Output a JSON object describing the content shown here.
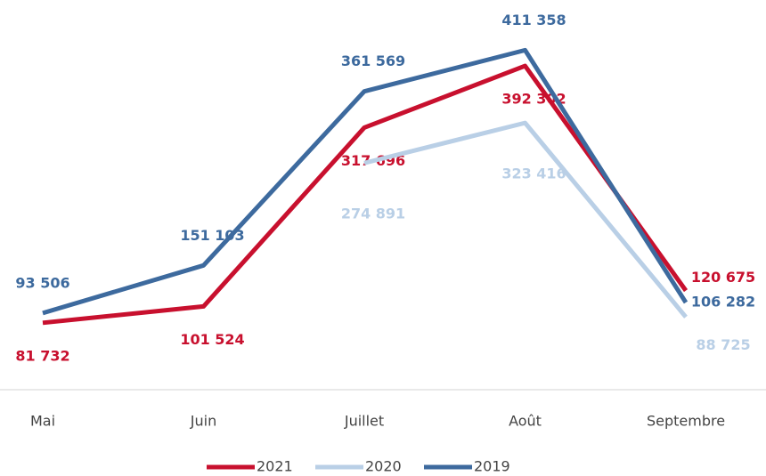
{
  "chart_data": {
    "type": "line",
    "categories": [
      "Mai",
      "Juin",
      "Juillet",
      "Août",
      "Septembre"
    ],
    "series": [
      {
        "name": "2021",
        "color": "#c8102e",
        "values": [
          81732,
          101524,
          317696,
          392302,
          120675
        ],
        "value_labels": [
          "81 732",
          "101 524",
          "317 696",
          "392 302",
          "120 675"
        ]
      },
      {
        "name": "2020",
        "color": "#b9cfe6",
        "values": [
          null,
          null,
          274891,
          323416,
          88725
        ],
        "value_labels": [
          null,
          null,
          "274 891",
          "323 416",
          "88 725"
        ]
      },
      {
        "name": "2019",
        "color": "#3d6a9e",
        "values": [
          93506,
          151103,
          361569,
          411358,
          106282
        ],
        "value_labels": [
          "93 506",
          "151 103",
          "361 569",
          "411 358",
          "106 282"
        ]
      }
    ],
    "ylim": [
      0,
      472000
    ]
  }
}
